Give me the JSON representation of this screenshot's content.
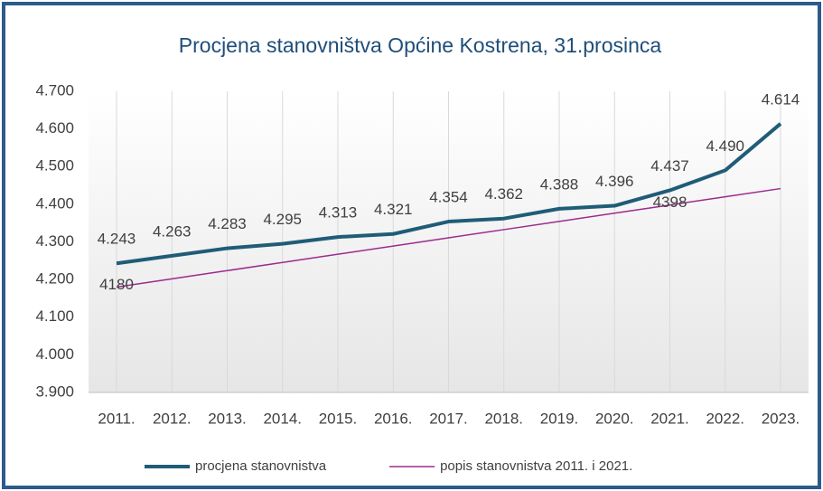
{
  "chart_data": {
    "type": "line",
    "title": "Procjena stanovništva Općine Kostrena, 31.prosinca",
    "categories": [
      "2011.",
      "2012.",
      "2013.",
      "2014.",
      "2015.",
      "2016.",
      "2017.",
      "2018.",
      "2019.",
      "2020.",
      "2021.",
      "2022.",
      "2023."
    ],
    "series": [
      {
        "name": "procjena stanovnistva",
        "color": "#1f5c78",
        "width": 4,
        "values": [
          4243,
          4263,
          4283,
          4295,
          4313,
          4321,
          4354,
          4362,
          4388,
          4396,
          4437,
          4490,
          4614
        ],
        "value_labels": [
          "4.243",
          "4.263",
          "4.283",
          "4.295",
          "4.313",
          "4.321",
          "4.354",
          "4.362",
          "4.388",
          "4.396",
          "4.437",
          "4.490",
          "4.614"
        ]
      },
      {
        "name": "popis stanovnistva 2011. i 2021.",
        "color": "#9b2c8e",
        "width": 1.5,
        "values": [
          4180,
          4201.8,
          4223.6,
          4245.4,
          4267.2,
          4289,
          4310.8,
          4332.6,
          4354.4,
          4376.2,
          4398,
          4419.8,
          4441.6
        ],
        "value_labels": [
          "4180",
          null,
          null,
          null,
          null,
          null,
          null,
          null,
          null,
          null,
          "4398",
          null,
          null
        ]
      }
    ],
    "ylim": [
      3900,
      4700
    ],
    "yticks": [
      {
        "value": 3900,
        "label": "3.900"
      },
      {
        "value": 4000,
        "label": "4.000"
      },
      {
        "value": 4100,
        "label": "4.100"
      },
      {
        "value": 4200,
        "label": "4.200"
      },
      {
        "value": 4300,
        "label": "4.300"
      },
      {
        "value": 4400,
        "label": "4.400"
      },
      {
        "value": 4500,
        "label": "4.500"
      },
      {
        "value": 4600,
        "label": "4.600"
      },
      {
        "value": 4700,
        "label": "4.700"
      }
    ],
    "xgrid": true,
    "legend": "bottom"
  }
}
